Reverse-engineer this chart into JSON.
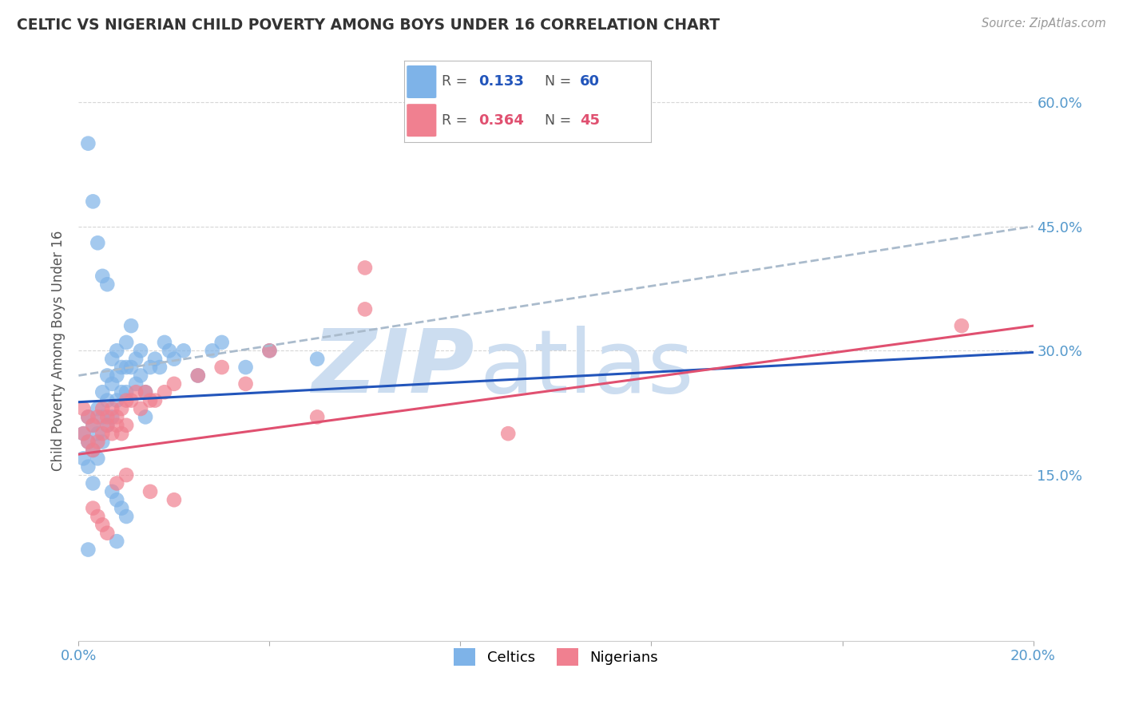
{
  "title": "CELTIC VS NIGERIAN CHILD POVERTY AMONG BOYS UNDER 16 CORRELATION CHART",
  "source": "Source: ZipAtlas.com",
  "ylabel": "Child Poverty Among Boys Under 16",
  "xlim": [
    0.0,
    0.2
  ],
  "ylim": [
    -0.05,
    0.65
  ],
  "yticks": [
    0.15,
    0.3,
    0.45,
    0.6
  ],
  "ytick_labels": [
    "15.0%",
    "30.0%",
    "45.0%",
    "60.0%"
  ],
  "xtick_labels": [
    "0.0%",
    "20.0%"
  ],
  "celtics_color": "#7eb3e8",
  "nigerians_color": "#f08090",
  "celtics_line_color": "#2255bb",
  "nigerians_line_color": "#e05070",
  "dashed_line_color": "#aabbcc",
  "tick_color": "#5599cc",
  "grid_color": "#cccccc",
  "watermark": "ZIPatlas",
  "watermark_color": "#ccddf0",
  "legend_r_celtic": "0.133",
  "legend_n_celtic": "60",
  "legend_r_nigerian": "0.364",
  "legend_n_nigerian": "45",
  "celtic_line": [
    0.0,
    0.2,
    0.238,
    0.298
  ],
  "nigerian_line": [
    0.0,
    0.2,
    0.175,
    0.33
  ],
  "dashed_line": [
    0.0,
    0.2,
    0.27,
    0.45
  ],
  "celtics_x": [
    0.001,
    0.001,
    0.002,
    0.002,
    0.002,
    0.003,
    0.003,
    0.003,
    0.004,
    0.004,
    0.004,
    0.005,
    0.005,
    0.005,
    0.006,
    0.006,
    0.006,
    0.007,
    0.007,
    0.007,
    0.008,
    0.008,
    0.008,
    0.009,
    0.009,
    0.01,
    0.01,
    0.01,
    0.011,
    0.011,
    0.012,
    0.012,
    0.013,
    0.013,
    0.014,
    0.014,
    0.015,
    0.016,
    0.017,
    0.018,
    0.019,
    0.02,
    0.022,
    0.025,
    0.028,
    0.03,
    0.035,
    0.04,
    0.05,
    0.002,
    0.003,
    0.004,
    0.005,
    0.006,
    0.007,
    0.008,
    0.009,
    0.01,
    0.002,
    0.008
  ],
  "celtics_y": [
    0.2,
    0.17,
    0.22,
    0.19,
    0.16,
    0.21,
    0.18,
    0.14,
    0.23,
    0.2,
    0.17,
    0.25,
    0.22,
    0.19,
    0.27,
    0.24,
    0.21,
    0.29,
    0.26,
    0.22,
    0.3,
    0.27,
    0.24,
    0.28,
    0.25,
    0.31,
    0.28,
    0.25,
    0.33,
    0.28,
    0.29,
    0.26,
    0.3,
    0.27,
    0.25,
    0.22,
    0.28,
    0.29,
    0.28,
    0.31,
    0.3,
    0.29,
    0.3,
    0.27,
    0.3,
    0.31,
    0.28,
    0.3,
    0.29,
    0.55,
    0.48,
    0.43,
    0.39,
    0.38,
    0.13,
    0.12,
    0.11,
    0.1,
    0.06,
    0.07
  ],
  "nigerians_x": [
    0.001,
    0.001,
    0.002,
    0.002,
    0.003,
    0.003,
    0.004,
    0.004,
    0.005,
    0.005,
    0.006,
    0.006,
    0.007,
    0.007,
    0.008,
    0.008,
    0.009,
    0.009,
    0.01,
    0.01,
    0.011,
    0.012,
    0.013,
    0.014,
    0.015,
    0.016,
    0.018,
    0.02,
    0.025,
    0.03,
    0.035,
    0.04,
    0.05,
    0.06,
    0.09,
    0.003,
    0.004,
    0.005,
    0.006,
    0.008,
    0.01,
    0.015,
    0.02,
    0.06,
    0.185
  ],
  "nigerians_y": [
    0.23,
    0.2,
    0.22,
    0.19,
    0.21,
    0.18,
    0.22,
    0.19,
    0.23,
    0.2,
    0.21,
    0.22,
    0.23,
    0.2,
    0.22,
    0.21,
    0.23,
    0.2,
    0.24,
    0.21,
    0.24,
    0.25,
    0.23,
    0.25,
    0.24,
    0.24,
    0.25,
    0.26,
    0.27,
    0.28,
    0.26,
    0.3,
    0.22,
    0.4,
    0.2,
    0.11,
    0.1,
    0.09,
    0.08,
    0.14,
    0.15,
    0.13,
    0.12,
    0.35,
    0.33
  ]
}
